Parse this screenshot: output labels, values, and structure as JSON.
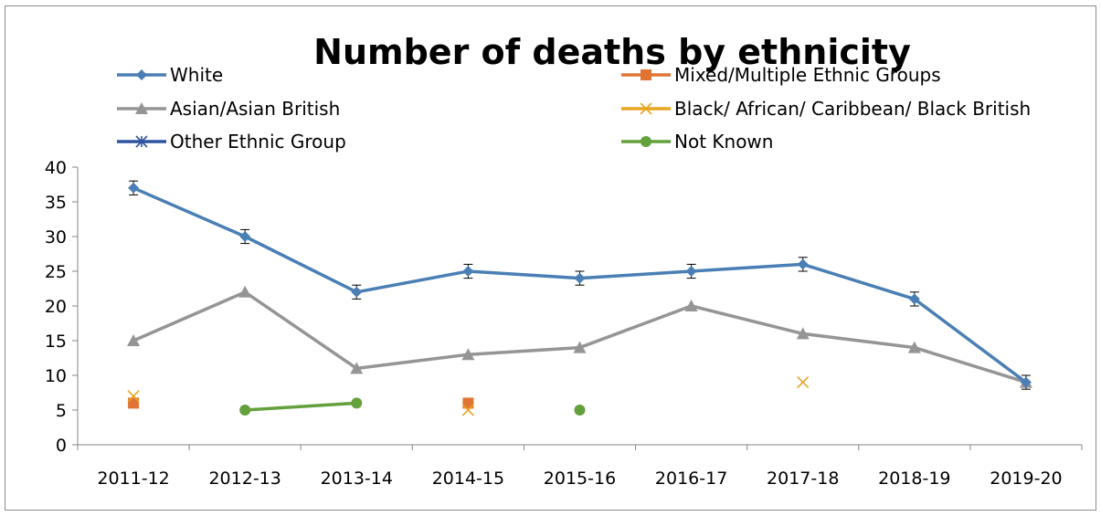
{
  "chart_data": {
    "type": "line",
    "title": "Number of deaths by ethnicity",
    "xlabel": "",
    "ylabel": "",
    "categories": [
      "2011-12",
      "2012-13",
      "2013-14",
      "2014-15",
      "2015-16",
      "2016-17",
      "2017-18",
      "2018-19",
      "2019-20"
    ],
    "ylim": [
      0,
      40
    ],
    "yticks": [
      "0",
      "5",
      "10",
      "15",
      "20",
      "25",
      "30",
      "35",
      "40"
    ],
    "grid": false,
    "legend_position": "top",
    "error_bars": {
      "series": "White",
      "plus_minus": 1
    },
    "series": [
      {
        "name": "White",
        "color": "#4a7fb5",
        "marker": "diamond",
        "values": [
          37,
          30,
          22,
          25,
          24,
          25,
          26,
          21,
          9
        ]
      },
      {
        "name": "Mixed/Multiple Ethnic Groups",
        "color": "#e07433",
        "marker": "square",
        "values": [
          6,
          null,
          null,
          6,
          null,
          null,
          null,
          null,
          null
        ]
      },
      {
        "name": "Asian/Asian British",
        "color": "#959595",
        "marker": "triangle",
        "values": [
          15,
          22,
          11,
          13,
          14,
          20,
          16,
          14,
          9
        ]
      },
      {
        "name": "Black/ African/ Caribbean/ Black British",
        "color": "#e8a520",
        "marker": "x",
        "values": [
          7,
          null,
          null,
          5,
          null,
          null,
          9,
          null,
          null
        ]
      },
      {
        "name": "Other Ethnic Group",
        "color": "#2e54a0",
        "marker": "star",
        "values": [
          null,
          null,
          null,
          null,
          null,
          null,
          null,
          null,
          null
        ]
      },
      {
        "name": "Not Known",
        "color": "#64a03c",
        "marker": "circle",
        "values": [
          null,
          5,
          6,
          null,
          5,
          null,
          null,
          null,
          null
        ]
      }
    ]
  }
}
